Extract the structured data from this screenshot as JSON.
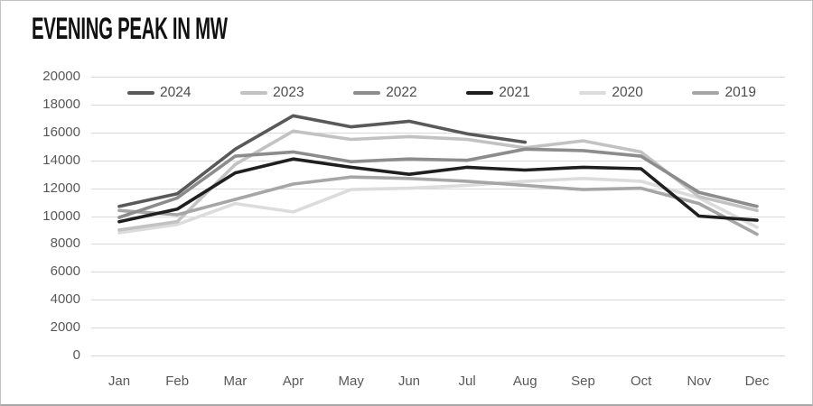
{
  "title": "EVENING PEAK IN MW",
  "styles": {
    "background": "#ffffff",
    "border_color": "#c3c3c3",
    "title_color": "#111111",
    "grid_color": "#d9d9d9",
    "axis_label_color": "#595959",
    "legend_label_color": "#4d4d4d"
  },
  "chart_data": {
    "type": "line",
    "title": "EVENING PEAK IN MW",
    "unit": "MW",
    "categories": [
      "Jan",
      "Feb",
      "Mar",
      "Apr",
      "May",
      "Jun",
      "Jul",
      "Aug",
      "Sep",
      "Oct",
      "Nov",
      "Dec"
    ],
    "series": [
      {
        "name": "2024",
        "color": "#595959",
        "values": [
          10700,
          11600,
          14800,
          17200,
          16400,
          16800,
          15900,
          15300,
          null,
          null,
          null,
          null
        ]
      },
      {
        "name": "2023",
        "color": "#c2c2c2",
        "values": [
          9000,
          9600,
          13700,
          16100,
          15500,
          15700,
          15500,
          14900,
          15400,
          14600,
          11400,
          10400
        ]
      },
      {
        "name": "2022",
        "color": "#8c8c8c",
        "values": [
          9900,
          11300,
          14300,
          14600,
          13900,
          14100,
          14000,
          14800,
          14700,
          14300,
          11700,
          10700
        ]
      },
      {
        "name": "2021",
        "color": "#1f1f1f",
        "values": [
          9600,
          10500,
          13100,
          14100,
          13500,
          13000,
          13500,
          13300,
          13500,
          13400,
          10000,
          9700
        ]
      },
      {
        "name": "2020",
        "color": "#dcdcdc",
        "values": [
          8800,
          9400,
          10900,
          10300,
          11900,
          12000,
          12200,
          12500,
          12700,
          12500,
          11300,
          9200
        ]
      },
      {
        "name": "2019",
        "color": "#a6a6a6",
        "values": [
          10400,
          10100,
          11200,
          12300,
          12800,
          12700,
          12500,
          12200,
          11900,
          12000,
          10900,
          8700
        ]
      }
    ],
    "ylim": [
      0,
      20000
    ],
    "ytick_step": 2000,
    "ytick_labels": [
      "0",
      "2000",
      "4000",
      "6000",
      "8000",
      "10000",
      "12000",
      "14000",
      "16000",
      "18000",
      "20000"
    ],
    "xtick_labels": [
      "Jan",
      "Feb",
      "Mar",
      "Apr",
      "May",
      "Jun",
      "Jul",
      "Aug",
      "Sep",
      "Oct",
      "Nov",
      "Dec"
    ],
    "grid": "horizontal",
    "legend_position": "top",
    "legend_entries": [
      "2024",
      "2023",
      "2022",
      "2021",
      "2020",
      "2019"
    ]
  }
}
